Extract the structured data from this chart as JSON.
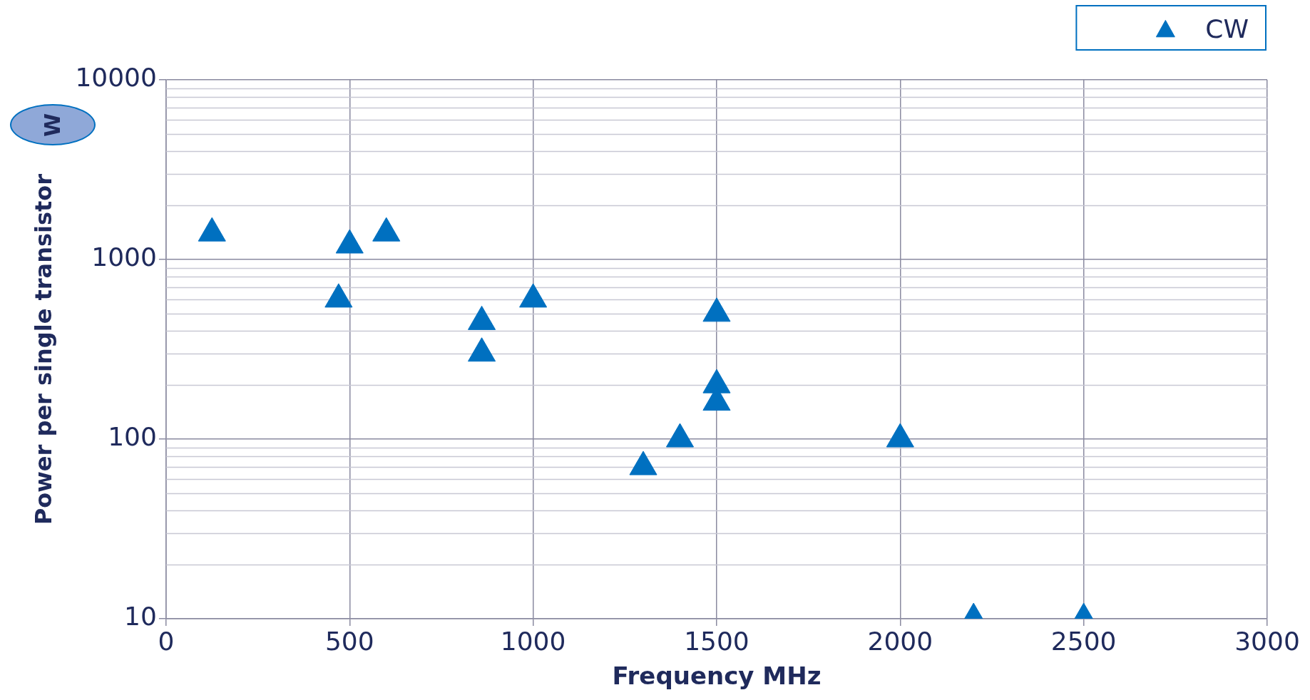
{
  "chart_data": {
    "type": "scatter",
    "xlabel": "Frequency MHz",
    "ylabel": "Power per single transistor",
    "annotations": [
      "W"
    ],
    "series": [
      {
        "name": "CW",
        "color": "#0070c0",
        "x": [
          125,
          470,
          500,
          600,
          860,
          860,
          1000,
          1500,
          1500,
          1500,
          1400,
          1300,
          2000,
          2200,
          2500
        ],
        "values": [
          1400,
          600,
          1200,
          1400,
          450,
          300,
          600,
          500,
          200,
          160,
          100,
          70,
          100,
          10,
          10
        ]
      }
    ],
    "xlim": [
      0,
      3000
    ],
    "xticks": [
      0,
      500,
      1000,
      1500,
      2000,
      2500,
      3000
    ],
    "ylim": [
      10,
      10000
    ],
    "yticks": [
      10,
      100,
      1000,
      10000
    ],
    "log": "y",
    "grid": true,
    "legend": "top right",
    "marker": "triangle"
  }
}
